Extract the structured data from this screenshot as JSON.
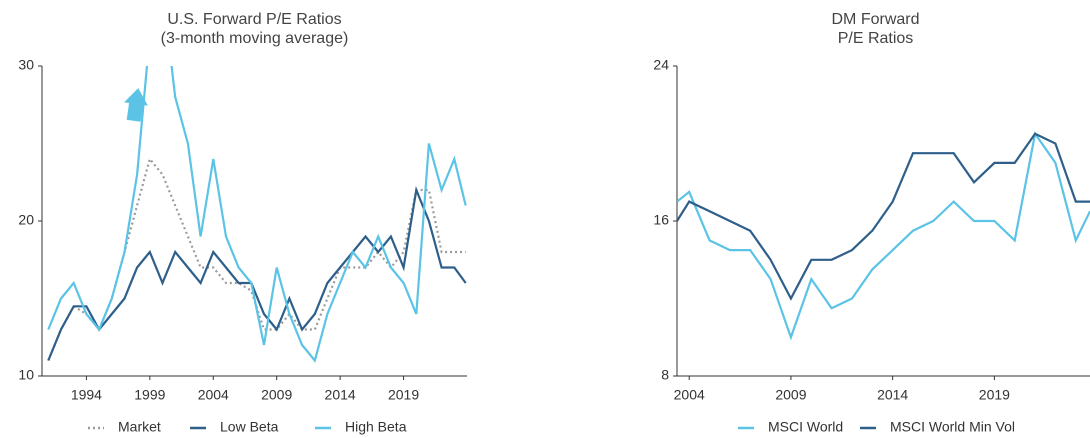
{
  "chart_data": [
    {
      "type": "line",
      "title": [
        "U.S. Forward P/E Ratios",
        "(3-month moving average)"
      ],
      "x": [
        1991,
        1992,
        1993,
        1994,
        1995,
        1996,
        1997,
        1998,
        1999,
        2000,
        2001,
        2002,
        2003,
        2004,
        2005,
        2006,
        2007,
        2008,
        2009,
        2010,
        2011,
        2012,
        2013,
        2014,
        2015,
        2016,
        2017,
        2018,
        2019,
        2020,
        2021,
        2022,
        2023,
        2023.9
      ],
      "xlim": [
        1990.5,
        2024
      ],
      "xticks": [
        1994,
        1999,
        2004,
        2009,
        2014,
        2019
      ],
      "ylim": [
        10,
        30
      ],
      "yticks": [
        10,
        20,
        30
      ],
      "legend": "bottom",
      "series": [
        {
          "name": "Market",
          "color": "#9a9a9a",
          "style": "dotted",
          "values": [
            11,
            13,
            14.5,
            14,
            13,
            15,
            18,
            21,
            24,
            23,
            21,
            19,
            17,
            17,
            16,
            16,
            15.5,
            13,
            13,
            14,
            13,
            13,
            15,
            17,
            17,
            17,
            18,
            17,
            18,
            22,
            22,
            18,
            18,
            18
          ]
        },
        {
          "name": "Low Beta",
          "color": "#2e5f8a",
          "style": "solid",
          "values": [
            11,
            13,
            14.5,
            14.5,
            13,
            14,
            15,
            17,
            18,
            16,
            18,
            17,
            16,
            18,
            17,
            16,
            16,
            14,
            13,
            15,
            13,
            14,
            16,
            17,
            18,
            19,
            18,
            19,
            17,
            22,
            20,
            17,
            17,
            16
          ]
        },
        {
          "name": "High Beta",
          "color": "#5bc3e5",
          "style": "solid",
          "values": [
            13,
            15,
            16,
            14,
            13,
            15,
            18,
            23,
            32,
            35,
            28,
            25,
            19,
            24,
            19,
            17,
            16,
            12,
            17,
            14,
            12,
            11,
            14,
            16,
            18,
            17,
            19,
            17,
            16,
            14,
            25,
            22,
            24,
            21
          ]
        }
      ]
    },
    {
      "type": "line",
      "title": [
        "DM Forward",
        "P/E Ratios"
      ],
      "x": [
        2003.4,
        2004,
        2005,
        2006,
        2007,
        2008,
        2009,
        2010,
        2011,
        2012,
        2013,
        2014,
        2015,
        2016,
        2017,
        2018,
        2019,
        2020,
        2021,
        2022,
        2023,
        2023.7
      ],
      "xlim": [
        2003.4,
        2023.7
      ],
      "xticks": [
        2004,
        2009,
        2014,
        2019
      ],
      "ylim": [
        8,
        24
      ],
      "yticks": [
        8,
        16,
        24
      ],
      "legend": "bottom",
      "series": [
        {
          "name": "MSCI World",
          "color": "#5bc3e5",
          "style": "solid",
          "values": [
            17,
            17.5,
            15,
            14.5,
            14.5,
            13,
            10,
            13,
            11.5,
            12,
            13.5,
            14.5,
            15.5,
            16,
            17,
            16,
            16,
            15,
            20.5,
            19,
            15,
            16.5
          ]
        },
        {
          "name": "MSCI World Min Vol",
          "color": "#2e5f8a",
          "style": "solid",
          "values": [
            16,
            17,
            16.5,
            16,
            15.5,
            14,
            12,
            14,
            14,
            14.5,
            15.5,
            17,
            19.5,
            19.5,
            19.5,
            18,
            19,
            19,
            20.5,
            20,
            17,
            17
          ]
        }
      ]
    }
  ]
}
